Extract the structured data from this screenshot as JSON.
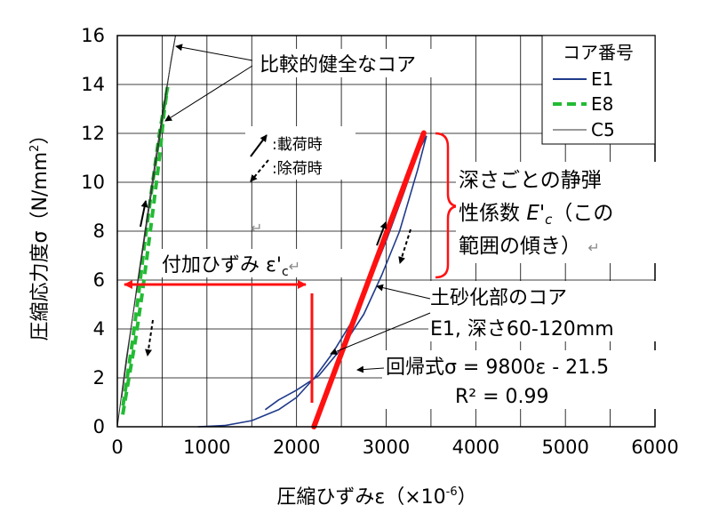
{
  "chart_data": {
    "type": "line",
    "xlabel": "圧縮ひずみε（×10",
    "xlabel_sup": "-6",
    "xlabel_end": "）",
    "ylabel": "圧縮応力度σ（N/mm",
    "ylabel_sup": "2",
    "ylabel_end": "）",
    "xlim": [
      0,
      6000
    ],
    "ylim": [
      0,
      16
    ],
    "xticks": [
      0,
      1000,
      2000,
      3000,
      4000,
      5000,
      6000
    ],
    "yticks": [
      0,
      2,
      4,
      6,
      8,
      10,
      12,
      14,
      16
    ],
    "x_minor_step": 500,
    "grid": true,
    "legend": {
      "title": "コア番号",
      "position": "top-right",
      "entries": [
        {
          "label": "E1",
          "color": "#1f3a8a",
          "dash": "solid"
        },
        {
          "label": "E8",
          "color": "#22bb33",
          "dash": "dashed"
        },
        {
          "label": "C5",
          "color": "#333333",
          "dash": "solid"
        }
      ]
    },
    "series": [
      {
        "name": "E1",
        "color": "#1f3a8a",
        "loading": [
          [
            900,
            0
          ],
          [
            1200,
            0.05
          ],
          [
            1500,
            0.25
          ],
          [
            1800,
            0.7
          ],
          [
            2000,
            1.2
          ],
          [
            2200,
            2.0
          ],
          [
            2400,
            3.0
          ],
          [
            2600,
            4.2
          ],
          [
            2800,
            5.8
          ],
          [
            3000,
            7.6
          ],
          [
            3200,
            9.6
          ],
          [
            3350,
            11.2
          ],
          [
            3450,
            11.9
          ]
        ],
        "unloading": [
          [
            3450,
            11.9
          ],
          [
            3350,
            10.5
          ],
          [
            3150,
            8.0
          ],
          [
            2950,
            6.2
          ],
          [
            2750,
            4.6
          ],
          [
            2500,
            3.2
          ],
          [
            2250,
            2.1
          ],
          [
            2000,
            1.5
          ],
          [
            1800,
            1.1
          ],
          [
            1650,
            0.7
          ]
        ]
      },
      {
        "name": "E8",
        "color": "#22bb33",
        "loading": [
          [
            60,
            0.5
          ],
          [
            120,
            1.8
          ],
          [
            200,
            3.5
          ],
          [
            280,
            5.5
          ],
          [
            350,
            7.5
          ],
          [
            410,
            9.2
          ],
          [
            470,
            11.0
          ],
          [
            520,
            12.8
          ],
          [
            560,
            13.9
          ]
        ],
        "unloading": [
          [
            560,
            13.9
          ],
          [
            470,
            12.0
          ],
          [
            380,
            9.6
          ],
          [
            300,
            7.4
          ],
          [
            230,
            5.2
          ],
          [
            170,
            3.5
          ],
          [
            110,
            2.0
          ],
          [
            60,
            0.8
          ]
        ]
      },
      {
        "name": "C5",
        "color": "#333333",
        "loading": [
          [
            0,
            0
          ],
          [
            100,
            2.8
          ],
          [
            200,
            5.2
          ],
          [
            300,
            7.6
          ],
          [
            400,
            10.0
          ],
          [
            500,
            12.5
          ],
          [
            600,
            15.0
          ],
          [
            650,
            16.0
          ]
        ],
        "unloading": [
          [
            650,
            16.0
          ],
          [
            520,
            13.2
          ],
          [
            420,
            10.8
          ],
          [
            320,
            8.3
          ],
          [
            220,
            5.8
          ],
          [
            130,
            3.4
          ],
          [
            50,
            1.2
          ]
        ]
      }
    ],
    "regression": {
      "label": "回帰式σ = 9800ε - 21.5",
      "r2_label": "R² = 0.99",
      "slope": 9800,
      "intercept": -21.5,
      "x_range": [
        2194,
        3420
      ],
      "color": "#ff1111"
    },
    "annotations": {
      "healthy_core": "比較的健全なコア",
      "loading_legend": ":載荷時",
      "unloading_legend": ":除荷時",
      "static_modulus_line1": "深さごとの静弾",
      "static_modulus_line2": "性係数",
      "static_modulus_E": "E'",
      "static_modulus_sub": "c",
      "static_modulus_paren": "（この",
      "static_modulus_line3": "範囲の傾き）",
      "return_mark": "↵",
      "added_strain": "付加ひずみ",
      "added_strain_eps": "ε'",
      "added_strain_sub": "c",
      "soil_core_line1": "土砂化部のコア",
      "soil_core_line2": "E1, 深さ60-120mm"
    }
  }
}
